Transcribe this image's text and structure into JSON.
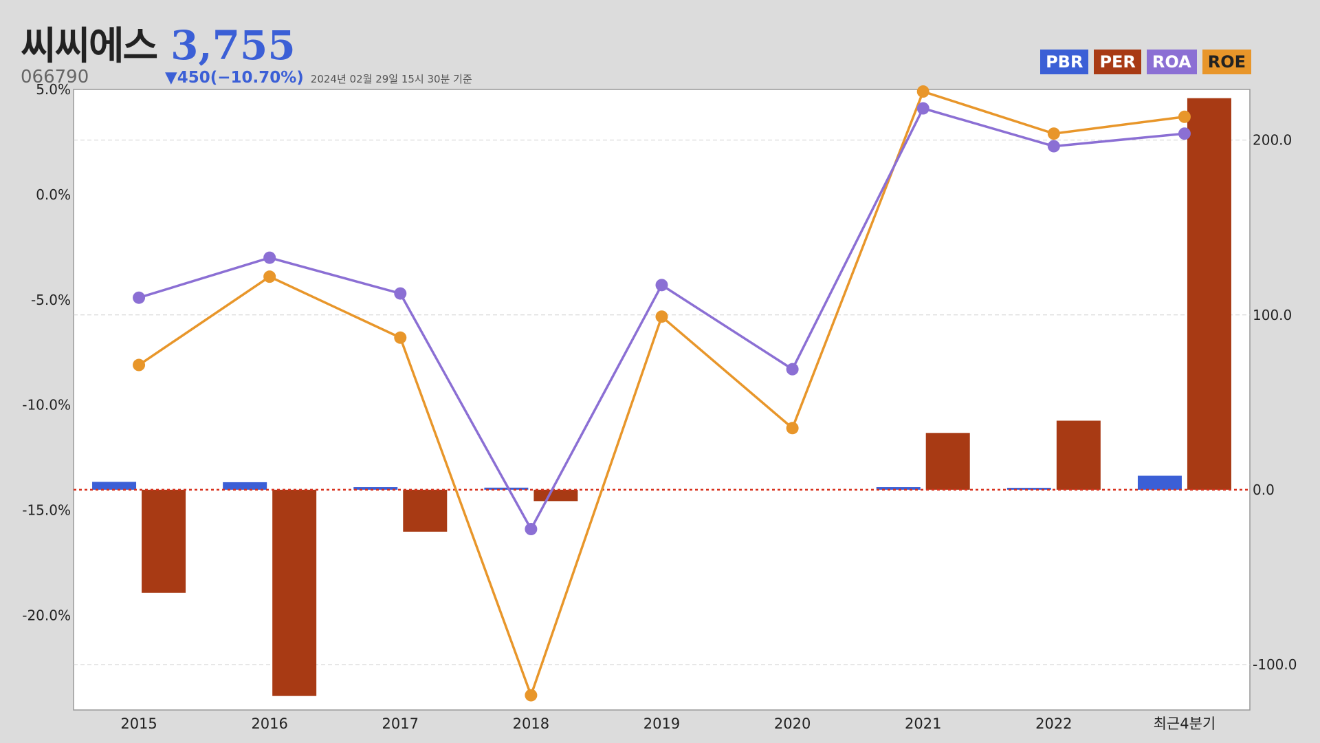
{
  "header": {
    "company": "씨씨에스",
    "price": "3,755",
    "code": "066790",
    "change": "▼450(−10.70%)",
    "timestamp": "2024년 02월 29일 15시 30분 기준"
  },
  "legend": [
    {
      "label": "PBR",
      "color": "#3b5fd6"
    },
    {
      "label": "PER",
      "color": "#a83a14"
    },
    {
      "label": "ROA",
      "color": "#8b6fd4"
    },
    {
      "label": "ROE",
      "color": "#e8962a"
    }
  ],
  "chart_data": {
    "type": "bar",
    "categories": [
      "2015",
      "2016",
      "2017",
      "2018",
      "2019",
      "2020",
      "2021",
      "2022",
      "최근4분기"
    ],
    "left_axis": {
      "min": -24.5,
      "max": 5.0,
      "ticks": [
        5.0,
        0.0,
        -5.0,
        -10.0,
        -15.0,
        -20.0
      ],
      "tick_labels": [
        "5.0%",
        "0.0%",
        "-5.0%",
        "-10.0%",
        "-15.0%",
        "-20.0%"
      ]
    },
    "right_axis": {
      "min": -126,
      "max": 229,
      "ticks": [
        200.0,
        100.0,
        0.0,
        -100.0
      ],
      "tick_labels": [
        "200.0",
        "100.0",
        "0.0",
        "-100.0"
      ]
    },
    "series": [
      {
        "name": "PBR",
        "type": "bar",
        "axis": "right",
        "values": [
          4.5,
          4.3,
          1.5,
          1.2,
          null,
          null,
          1.5,
          1.1,
          8.0
        ]
      },
      {
        "name": "PER",
        "type": "bar",
        "axis": "right",
        "values": [
          -59.0,
          -118.0,
          -24.0,
          -6.5,
          null,
          null,
          32.5,
          39.5,
          224.0
        ]
      },
      {
        "name": "ROA",
        "type": "line",
        "axis": "left",
        "values": [
          -4.9,
          -3.0,
          -4.7,
          -15.9,
          -4.3,
          -8.3,
          4.1,
          2.3,
          2.9
        ]
      },
      {
        "name": "ROE",
        "type": "line",
        "axis": "left",
        "values": [
          -8.1,
          -3.9,
          -6.8,
          -23.8,
          -5.8,
          -11.1,
          4.9,
          2.9,
          3.7
        ]
      }
    ]
  }
}
